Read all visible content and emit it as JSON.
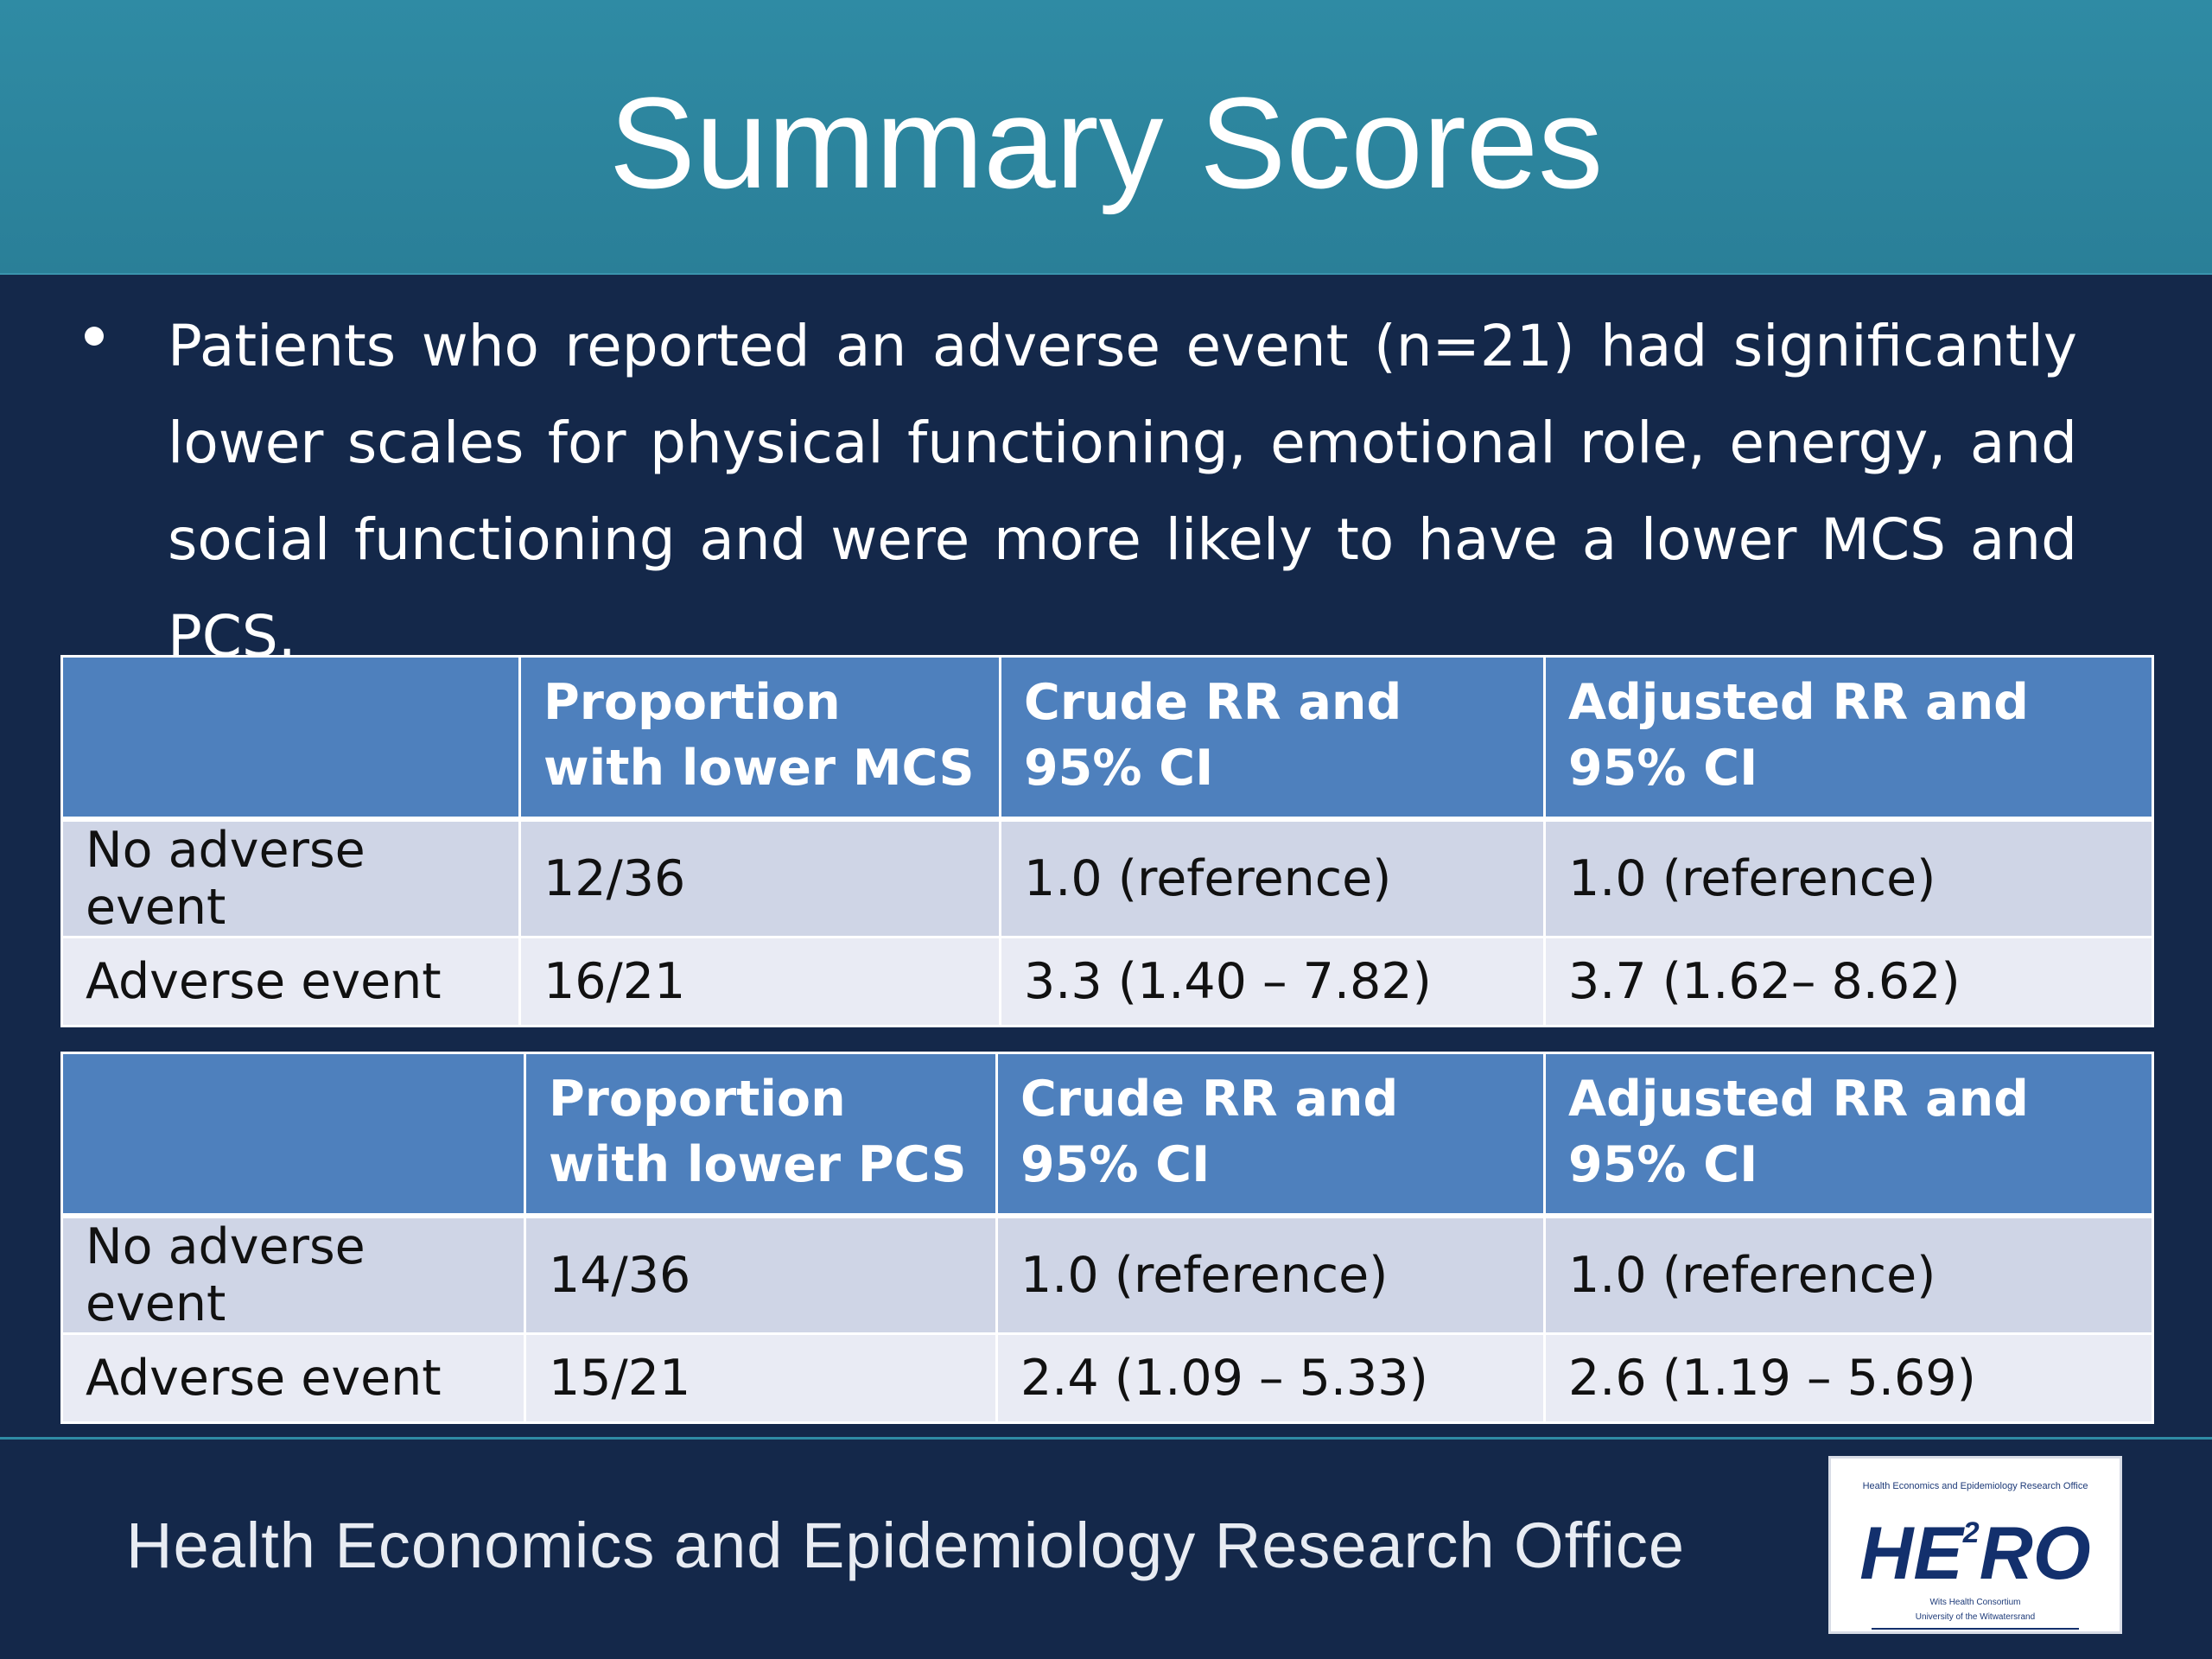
{
  "slide": {
    "title": "Summary Scores",
    "bullet": "Patients who reported an adverse event (n=21) had significantly lower scales for physical functioning, emotional role, energy, and social functioning and were more likely to have a lower MCS and PCS."
  },
  "table_mcs": {
    "headers": [
      "",
      "Proportion with lower MCS",
      "Crude RR and 95% CI",
      "Adjusted RR and 95% CI"
    ],
    "rows": [
      [
        "No adverse event",
        "12/36",
        "1.0 (reference)",
        "1.0 (reference)"
      ],
      [
        "Adverse event",
        "16/21",
        "3.3 (1.40 – 7.82)",
        "3.7 (1.62– 8.62)"
      ]
    ]
  },
  "table_pcs": {
    "headers": [
      "",
      "Proportion with lower PCS",
      "Crude RR and 95% CI",
      "Adjusted RR and 95% CI"
    ],
    "rows": [
      [
        "No adverse event",
        "14/36",
        "1.0 (reference)",
        "1.0 (reference)"
      ],
      [
        "Adverse event",
        "15/21",
        "2.4 (1.09 – 5.33)",
        "2.6 (1.19 – 5.69)"
      ]
    ]
  },
  "footer": {
    "organization": "Health Economics and Epidemiology Research Office",
    "logo": {
      "top_text": "Health Economics and Epidemiology Research Office",
      "mark_main": "HE",
      "mark_sup": "2",
      "mark_end": "RO",
      "bottom_line1": "Wits Health Consortium",
      "bottom_line2": "University of the Witwatersrand"
    }
  },
  "colors": {
    "title_band": "#2f8ba4",
    "background": "#14284a",
    "table_header": "#4e80bd",
    "row_odd": "#cfd5e6",
    "row_even": "#e9ebf4"
  }
}
